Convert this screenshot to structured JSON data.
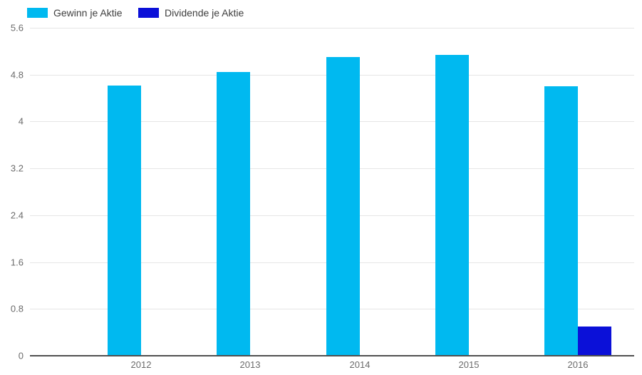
{
  "chart_data": {
    "type": "bar",
    "title": "",
    "xlabel": "",
    "ylabel": "",
    "categories": [
      "2012",
      "2013",
      "2014",
      "2015",
      "2016"
    ],
    "series": [
      {
        "name": "Gewinn je Aktie",
        "color": "#00b9f0",
        "values": [
          4.61,
          4.84,
          5.1,
          5.14,
          4.6
        ]
      },
      {
        "name": "Dividende je Aktie",
        "color": "#0b10d8",
        "values": [
          0,
          0,
          0,
          0,
          0.5
        ]
      }
    ],
    "ylim": [
      0,
      5.6
    ],
    "yticks": [
      "0",
      "0.8",
      "1.6",
      "2.4",
      "3.2",
      "4",
      "4.8",
      "5.6"
    ],
    "grid": true,
    "legend_position": "top-left",
    "background": "#ffffff"
  }
}
